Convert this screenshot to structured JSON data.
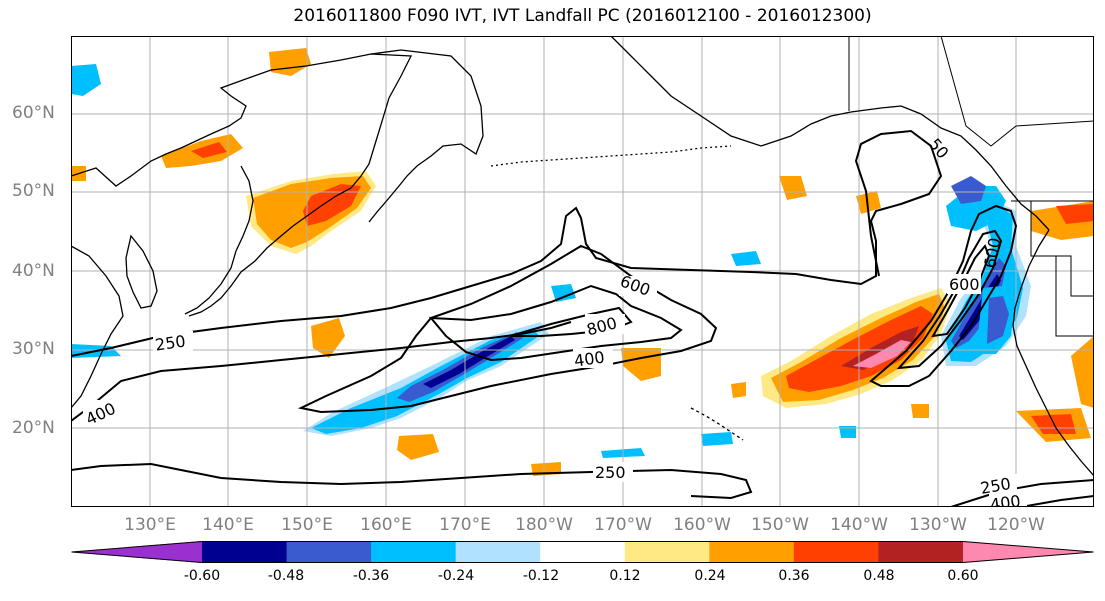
{
  "title": "2016011800 F090 IVT, IVT Landfall PC (2016012100 - 2016012300)",
  "lat_labels": [
    "60°N",
    "50°N",
    "40°N",
    "30°N",
    "20°N"
  ],
  "lon_labels": [
    "130°E",
    "140°E",
    "150°E",
    "160°E",
    "170°E",
    "180°W",
    "170°W",
    "160°W",
    "150°W",
    "140°W",
    "130°W",
    "120°W"
  ],
  "contour_labels": [
    "600",
    "800",
    "400",
    "250",
    "400",
    "250",
    "600",
    "250",
    "400",
    "600",
    "50"
  ],
  "colorbar": {
    "colors": [
      "#9b30d0",
      "#000090",
      "#3a5bd0",
      "#00bfff",
      "#b0e2ff",
      "#ffffff",
      "#ffe984",
      "#ffa000",
      "#ff4000",
      "#b22222",
      "#ff88b0"
    ],
    "tick_labels": [
      "-0.60",
      "-0.48",
      "-0.36",
      "-0.24",
      "-0.12",
      "0.12",
      "0.24",
      "0.36",
      "0.48",
      "0.60"
    ]
  }
}
